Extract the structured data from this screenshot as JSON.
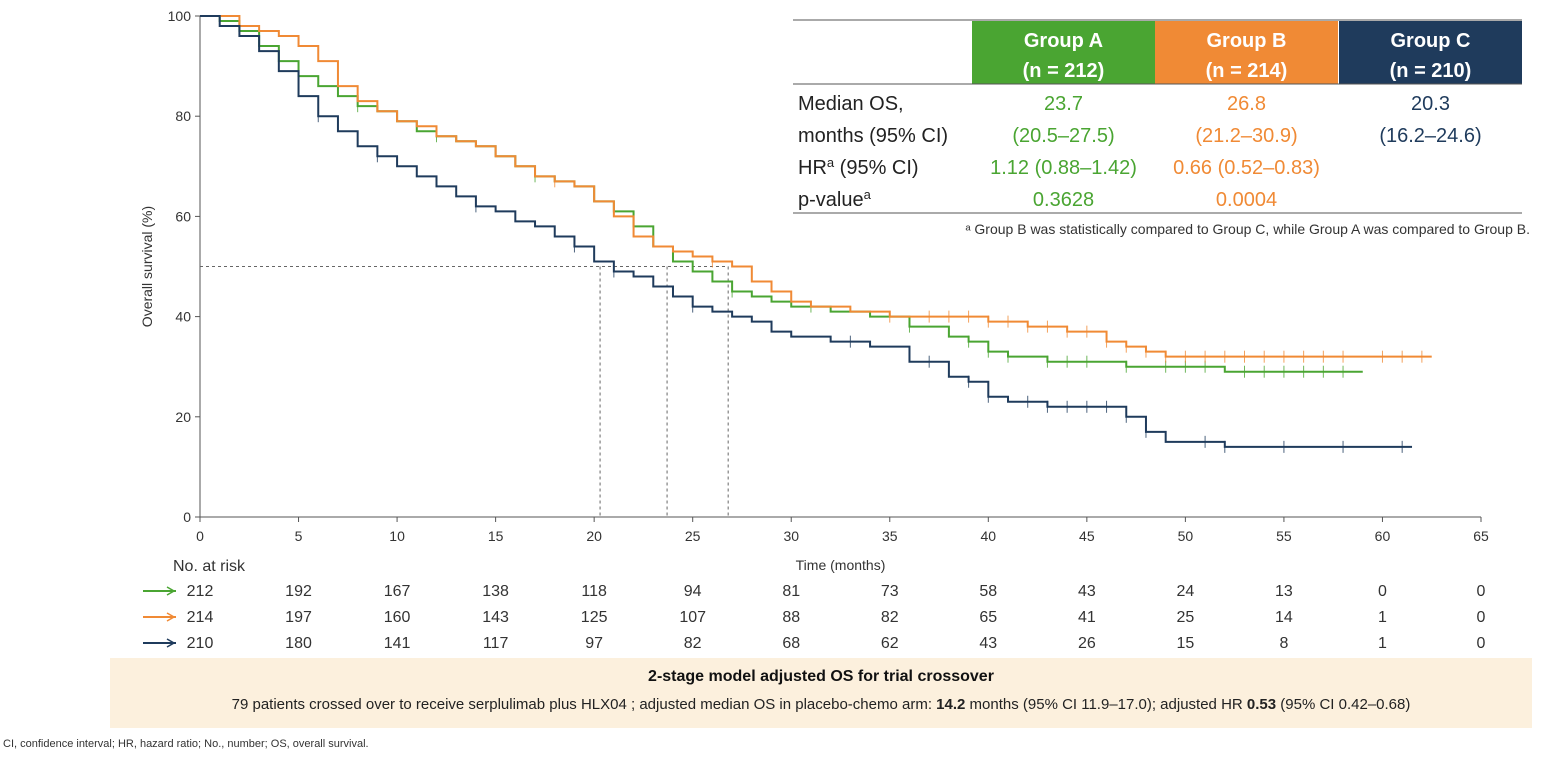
{
  "chart_data": {
    "type": "line",
    "ylabel": "Overall survival (%)",
    "xlabel": "Time (months)",
    "xlim": [
      0,
      65
    ],
    "ylim": [
      0,
      100
    ],
    "x_ticks": [
      0,
      5,
      10,
      15,
      20,
      25,
      30,
      35,
      40,
      45,
      50,
      55,
      60,
      65
    ],
    "y_ticks": [
      0,
      20,
      40,
      60,
      80,
      100
    ],
    "median_reference_y": 50,
    "median_marks_x": [
      20.3,
      23.7,
      26.8
    ],
    "series": [
      {
        "name": "Group A",
        "n": "(n = 212)",
        "color": "#4aa532",
        "points": [
          [
            0,
            100
          ],
          [
            1,
            99
          ],
          [
            2,
            97
          ],
          [
            3,
            94
          ],
          [
            4,
            91
          ],
          [
            5,
            88
          ],
          [
            6,
            86
          ],
          [
            7,
            84
          ],
          [
            8,
            82
          ],
          [
            9,
            81
          ],
          [
            10,
            79
          ],
          [
            11,
            77
          ],
          [
            12,
            76
          ],
          [
            13,
            75
          ],
          [
            14,
            74
          ],
          [
            15,
            72
          ],
          [
            16,
            70
          ],
          [
            17,
            68
          ],
          [
            18,
            67
          ],
          [
            19,
            66
          ],
          [
            20,
            63
          ],
          [
            21,
            61
          ],
          [
            22,
            58
          ],
          [
            23,
            54
          ],
          [
            24,
            51
          ],
          [
            25,
            49
          ],
          [
            26,
            47
          ],
          [
            27,
            45
          ],
          [
            28,
            44
          ],
          [
            29,
            43
          ],
          [
            30,
            42
          ],
          [
            32,
            41
          ],
          [
            34,
            40
          ],
          [
            36,
            38
          ],
          [
            38,
            36
          ],
          [
            39,
            35
          ],
          [
            40,
            33
          ],
          [
            41,
            32
          ],
          [
            43,
            31
          ],
          [
            46,
            31
          ],
          [
            47,
            30
          ],
          [
            50,
            30
          ],
          [
            52,
            29
          ],
          [
            55,
            29
          ],
          [
            59,
            29
          ]
        ],
        "censor_x": [
          8,
          12,
          17,
          22,
          27,
          31,
          36,
          39,
          40,
          41,
          43,
          44,
          45,
          47,
          49,
          50,
          51,
          53,
          54,
          55,
          56,
          57,
          58
        ]
      },
      {
        "name": "Group B",
        "n": "(n = 214)",
        "color": "#f08a35",
        "points": [
          [
            0,
            100
          ],
          [
            1,
            100
          ],
          [
            2,
            98
          ],
          [
            3,
            97
          ],
          [
            4,
            96
          ],
          [
            5,
            94
          ],
          [
            6,
            91
          ],
          [
            7,
            86
          ],
          [
            8,
            83
          ],
          [
            9,
            81
          ],
          [
            10,
            79
          ],
          [
            11,
            78
          ],
          [
            12,
            76
          ],
          [
            13,
            75
          ],
          [
            14,
            74
          ],
          [
            15,
            72
          ],
          [
            16,
            70
          ],
          [
            17,
            68
          ],
          [
            18,
            67
          ],
          [
            19,
            66
          ],
          [
            20,
            63
          ],
          [
            21,
            60
          ],
          [
            22,
            56
          ],
          [
            23,
            54
          ],
          [
            24,
            53
          ],
          [
            25,
            52
          ],
          [
            26,
            51
          ],
          [
            27,
            50
          ],
          [
            28,
            47
          ],
          [
            29,
            45
          ],
          [
            30,
            43
          ],
          [
            31,
            42
          ],
          [
            32,
            42
          ],
          [
            33,
            41
          ],
          [
            35,
            40
          ],
          [
            37,
            40
          ],
          [
            40,
            39
          ],
          [
            42,
            38
          ],
          [
            44,
            37
          ],
          [
            46,
            35
          ],
          [
            47,
            34
          ],
          [
            48,
            33
          ],
          [
            49,
            32
          ],
          [
            52,
            32
          ],
          [
            55,
            32
          ],
          [
            59,
            32
          ],
          [
            62.5,
            32
          ]
        ],
        "censor_x": [
          18,
          26,
          35,
          37,
          38,
          39,
          40,
          41,
          42,
          43,
          44,
          45,
          46,
          47,
          48,
          49,
          50,
          51,
          52,
          53,
          54,
          55,
          56,
          57,
          58,
          60,
          61,
          62
        ]
      },
      {
        "name": "Group C",
        "n": "(n = 210)",
        "color": "#1f3b5c",
        "points": [
          [
            0,
            100
          ],
          [
            1,
            98
          ],
          [
            2,
            96
          ],
          [
            3,
            93
          ],
          [
            4,
            89
          ],
          [
            5,
            84
          ],
          [
            6,
            80
          ],
          [
            7,
            77
          ],
          [
            8,
            74
          ],
          [
            9,
            72
          ],
          [
            10,
            70
          ],
          [
            11,
            68
          ],
          [
            12,
            66
          ],
          [
            13,
            64
          ],
          [
            14,
            62
          ],
          [
            15,
            61
          ],
          [
            16,
            59
          ],
          [
            17,
            58
          ],
          [
            18,
            56
          ],
          [
            19,
            54
          ],
          [
            20,
            51
          ],
          [
            21,
            49
          ],
          [
            22,
            48
          ],
          [
            23,
            46
          ],
          [
            24,
            44
          ],
          [
            25,
            42
          ],
          [
            26,
            41
          ],
          [
            27,
            40
          ],
          [
            28,
            39
          ],
          [
            29,
            37
          ],
          [
            30,
            36
          ],
          [
            32,
            35
          ],
          [
            34,
            34
          ],
          [
            36,
            31
          ],
          [
            38,
            28
          ],
          [
            39,
            27
          ],
          [
            40,
            24
          ],
          [
            41,
            23
          ],
          [
            43,
            22
          ],
          [
            46,
            22
          ],
          [
            47,
            20
          ],
          [
            48,
            17
          ],
          [
            49,
            15
          ],
          [
            51,
            15
          ],
          [
            52,
            14
          ],
          [
            55,
            14
          ],
          [
            59,
            14
          ],
          [
            61.5,
            14
          ]
        ],
        "censor_x": [
          6,
          9,
          14,
          19,
          21,
          25,
          33,
          37,
          39,
          40,
          42,
          43,
          44,
          45,
          46,
          47,
          48,
          51,
          52,
          55,
          58,
          61
        ]
      }
    ],
    "at_risk_label": "No. at risk",
    "at_risk_x": [
      0,
      5,
      10,
      15,
      20,
      25,
      30,
      35,
      40,
      45,
      50,
      55,
      60,
      65
    ],
    "at_risk": [
      [
        "212",
        "192",
        "167",
        "138",
        "118",
        "94",
        "81",
        "73",
        "58",
        "43",
        "24",
        "13",
        "0",
        "0"
      ],
      [
        "214",
        "197",
        "160",
        "143",
        "125",
        "107",
        "88",
        "82",
        "65",
        "41",
        "25",
        "14",
        "1",
        "0"
      ],
      [
        "210",
        "180",
        "141",
        "117",
        "97",
        "82",
        "68",
        "62",
        "43",
        "26",
        "15",
        "8",
        "1",
        "0"
      ]
    ]
  },
  "legend_table": {
    "headers": [
      {
        "name": "Group A",
        "n": "(n = 212)",
        "color": "#4aa532"
      },
      {
        "name": "Group B",
        "n": "(n = 214)",
        "color": "#f08a35"
      },
      {
        "name": "Group C",
        "n": "(n = 210)",
        "color": "#1f3b5c"
      }
    ],
    "rows": [
      {
        "label": "Median OS,",
        "values": [
          "23.7",
          "26.8",
          "20.3"
        ]
      },
      {
        "label": "months (95% CI)",
        "values": [
          "(20.5–27.5)",
          "(21.2–30.9)",
          "(16.2–24.6)"
        ]
      },
      {
        "label": "HR",
        "sup": "a",
        "label_rest": " (95% CI)",
        "values": [
          "1.12 (0.88–1.42)",
          "0.66 (0.52–0.83)",
          ""
        ]
      },
      {
        "label": "p-value",
        "sup": "a",
        "label_rest": "",
        "values": [
          "0.3628",
          "0.0004",
          ""
        ]
      }
    ],
    "footnote": "ᵃ Group B was statistically compared to Group C, while Group A was compared to Group B."
  },
  "crossover": {
    "title": "2-stage model adjusted OS for trial crossover",
    "text_before": "79 patients crossed over to receive serplulimab plus HLX04 ; adjusted median OS in placebo-chemo arm: ",
    "median_value": "14.2",
    "text_mid": " months (95% CI 11.9–17.0); adjusted HR ",
    "hr_value": "0.53",
    "text_after": " (95% CI 0.42–0.68)"
  },
  "footnote": "CI, confidence interval; HR, hazard ratio; No., number; OS, overall survival."
}
